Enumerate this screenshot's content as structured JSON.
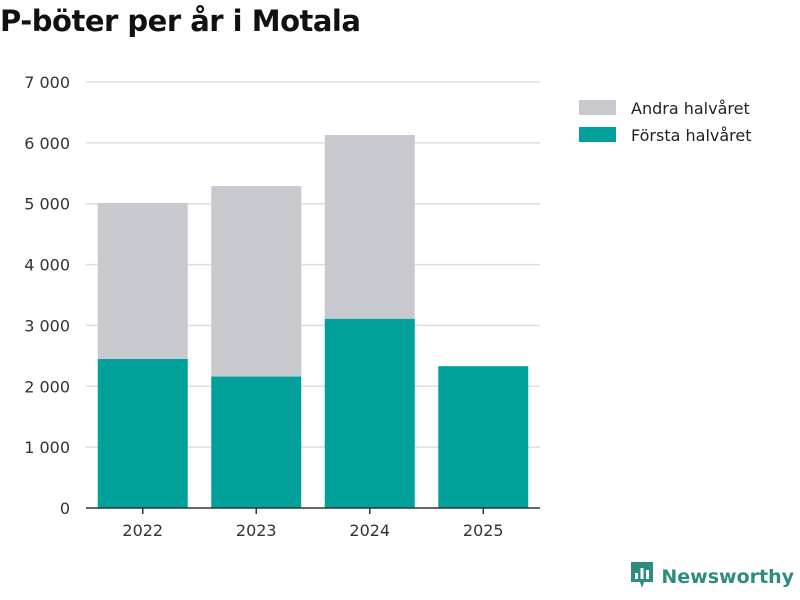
{
  "colors": {
    "first_half": "#00a19a",
    "second_half": "#c8c8cf",
    "grid": "#dddddd",
    "axis": "#333333",
    "brand": "#2e8b80"
  },
  "brand": {
    "name": "Newsworthy",
    "icon": "newsworthy-logo-icon"
  },
  "chart_data": {
    "type": "bar",
    "stacked": true,
    "title": "P-böter per år i Motala",
    "xlabel": "",
    "ylabel": "",
    "categories": [
      "2022",
      "2023",
      "2024",
      "2025"
    ],
    "ylim": [
      0,
      7000
    ],
    "yticks": [
      0,
      1000,
      2000,
      3000,
      4000,
      5000,
      6000,
      7000
    ],
    "ytick_labels": [
      "0",
      "1 000",
      "2 000",
      "3 000",
      "4 000",
      "5 000",
      "6 000",
      "7 000"
    ],
    "grid": true,
    "legend_position": "top-right",
    "series": [
      {
        "name": "Första halvåret",
        "color": "#00a19a",
        "values": [
          2450,
          2160,
          3110,
          2330
        ]
      },
      {
        "name": "Andra halvåret",
        "color": "#c8c8cf",
        "values": [
          2560,
          3130,
          3020,
          0
        ]
      }
    ],
    "legend": [
      "Andra halvåret",
      "Första halvåret"
    ]
  }
}
